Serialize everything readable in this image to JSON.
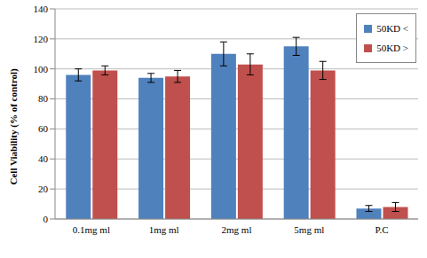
{
  "chart_data": {
    "type": "bar",
    "categories": [
      "0.1mg ml",
      "1mg ml",
      "2mg ml",
      "5mg ml",
      "P.C"
    ],
    "series": [
      {
        "name": "50KD <",
        "color": "#4f81bd",
        "values": [
          96,
          94,
          110,
          115,
          7
        ],
        "errors": [
          4,
          3,
          8,
          6,
          2
        ]
      },
      {
        "name": "50KD >",
        "color": "#c0504d",
        "values": [
          99,
          95,
          103,
          99,
          8
        ],
        "errors": [
          3,
          4,
          7,
          6,
          3
        ]
      }
    ],
    "y_label": "Cell Viability (% of control)",
    "ylim": [
      0,
      140
    ],
    "yticks": [
      0,
      20,
      40,
      60,
      80,
      100,
      120,
      140
    ],
    "grid": true,
    "legend": "upper right"
  }
}
